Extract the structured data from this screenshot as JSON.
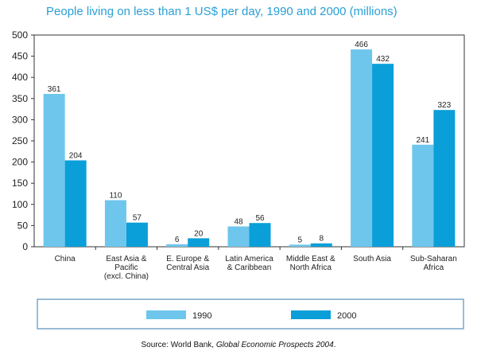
{
  "title": "People living on less than 1 US$ per day, 1990 and 2000 (millions)",
  "source": {
    "prefix": "Source: World Bank, ",
    "italic": "Global Economic Prospects 2004",
    "suffix": "."
  },
  "colors": {
    "s1990": "#6ec6ec",
    "s2000": "#0a9fd8",
    "axis": "#333333",
    "frame": "#7aa7c7"
  },
  "chart_data": {
    "type": "bar",
    "categories": [
      [
        "China"
      ],
      [
        "East Asia &",
        "Pacific",
        "(excl. China)"
      ],
      [
        "E. Europe &",
        "Central Asia"
      ],
      [
        "Latin America",
        "& Caribbean"
      ],
      [
        "Middle East &",
        "North Africa"
      ],
      [
        "South Asia"
      ],
      [
        "Sub-Saharan",
        "Africa"
      ]
    ],
    "series": [
      {
        "name": "1990",
        "values": [
          361,
          110,
          6,
          48,
          5,
          466,
          241
        ]
      },
      {
        "name": "2000",
        "values": [
          204,
          57,
          20,
          56,
          8,
          432,
          323
        ]
      }
    ],
    "ylim": [
      0,
      500
    ],
    "yticks": [
      0,
      50,
      100,
      150,
      200,
      250,
      300,
      350,
      400,
      450,
      500
    ],
    "grid": false,
    "legend_position": "bottom"
  }
}
